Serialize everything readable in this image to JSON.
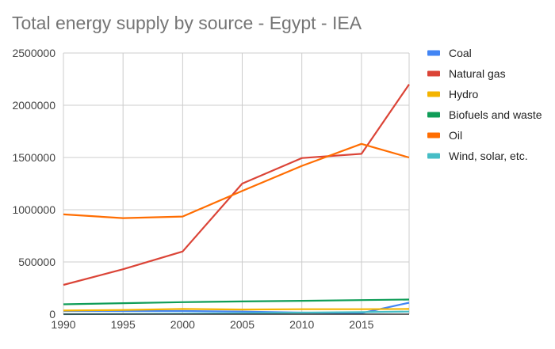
{
  "chart_data": {
    "type": "line",
    "title": "Total energy supply by source - Egypt - IEA",
    "xlabel": "",
    "ylabel": "",
    "x": [
      1990,
      1995,
      2000,
      2005,
      2010,
      2015,
      2019
    ],
    "xticks": [
      1990,
      1995,
      2000,
      2005,
      2010,
      2015
    ],
    "yticks": [
      0,
      500000,
      1000000,
      1500000,
      2000000,
      2500000
    ],
    "ylim": [
      0,
      2500000
    ],
    "xlim": [
      1990,
      2019
    ],
    "grid": true,
    "legend_position": "right",
    "series": [
      {
        "name": "Coal",
        "color": "#4285f4",
        "values": [
          30000,
          30000,
          30000,
          25000,
          15000,
          10000,
          110000
        ]
      },
      {
        "name": "Natural gas",
        "color": "#db4437",
        "values": [
          280000,
          430000,
          600000,
          1250000,
          1495000,
          1535000,
          2200000
        ]
      },
      {
        "name": "Hydro",
        "color": "#f4b400",
        "values": [
          35000,
          40000,
          50000,
          45000,
          48000,
          48000,
          50000
        ]
      },
      {
        "name": "Biofuels and waste",
        "color": "#0f9d58",
        "values": [
          95000,
          105000,
          115000,
          122000,
          128000,
          135000,
          140000
        ]
      },
      {
        "name": "Oil",
        "color": "#ff6d01",
        "values": [
          955000,
          920000,
          935000,
          1180000,
          1420000,
          1630000,
          1500000
        ]
      },
      {
        "name": "Wind, solar, etc.",
        "color": "#46bdc6",
        "values": [
          0,
          2000,
          5000,
          8000,
          15000,
          20000,
          25000
        ]
      }
    ]
  }
}
